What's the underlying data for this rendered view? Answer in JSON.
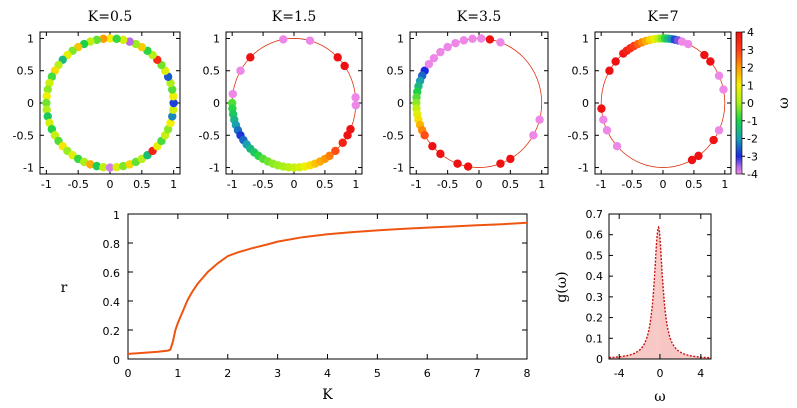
{
  "figure_title": "",
  "chart_data": [
    {
      "type": "scatter",
      "title": "K=0.5",
      "K": 0.5,
      "xlim": [
        -1.1,
        1.1
      ],
      "ylim": [
        -1.1,
        1.1
      ],
      "xticks": [
        "-1",
        "-0.5",
        "0",
        "0.5",
        "1"
      ],
      "yticks": [
        "-1",
        "-0.5",
        "0",
        "0.5",
        "1"
      ],
      "unit_circle": false,
      "points": [
        {
          "angle": 90,
          "omega": 1.0
        },
        {
          "angle": 96,
          "omega": 2.0
        },
        {
          "angle": 102,
          "omega": -0.5
        },
        {
          "angle": 108,
          "omega": 0.3
        },
        {
          "angle": 114,
          "omega": -1.0
        },
        {
          "angle": 120,
          "omega": 1.5
        },
        {
          "angle": 126,
          "omega": -0.3
        },
        {
          "angle": 132,
          "omega": 0.8
        },
        {
          "angle": 138,
          "omega": -1.5
        },
        {
          "angle": 144,
          "omega": 0.2
        },
        {
          "angle": 150,
          "omega": 1.2
        },
        {
          "angle": 156,
          "omega": -0.7
        },
        {
          "angle": 162,
          "omega": 0.5
        },
        {
          "angle": 168,
          "omega": -0.2
        },
        {
          "angle": 174,
          "omega": 0.9
        },
        {
          "angle": 180,
          "omega": -0.4
        },
        {
          "angle": 186,
          "omega": 0.1
        },
        {
          "angle": 192,
          "omega": -1.2
        },
        {
          "angle": 198,
          "omega": 0.6
        },
        {
          "angle": 204,
          "omega": -0.9
        },
        {
          "angle": 210,
          "omega": 0.4
        },
        {
          "angle": 216,
          "omega": -0.6
        },
        {
          "angle": 222,
          "omega": 1.1
        },
        {
          "angle": 228,
          "omega": -0.1
        },
        {
          "angle": 234,
          "omega": 0.7
        },
        {
          "angle": 240,
          "omega": -0.8
        },
        {
          "angle": 246,
          "omega": 0.0
        },
        {
          "angle": 252,
          "omega": 1.8
        },
        {
          "angle": 258,
          "omega": -1.1
        },
        {
          "angle": 264,
          "omega": 0.3
        },
        {
          "angle": 270,
          "omega": -3.8
        },
        {
          "angle": 276,
          "omega": 0.6
        },
        {
          "angle": 282,
          "omega": -0.3
        },
        {
          "angle": 288,
          "omega": 1.3
        },
        {
          "angle": 294,
          "omega": -0.5
        },
        {
          "angle": 300,
          "omega": 0.2
        },
        {
          "angle": 306,
          "omega": -1.4
        },
        {
          "angle": 312,
          "omega": 3.6
        },
        {
          "angle": 318,
          "omega": 0.8
        },
        {
          "angle": 324,
          "omega": -0.7
        },
        {
          "angle": 330,
          "omega": 0.4
        },
        {
          "angle": 336,
          "omega": -0.2
        },
        {
          "angle": 342,
          "omega": 1.0
        },
        {
          "angle": 348,
          "omega": -2.2
        },
        {
          "angle": 354,
          "omega": 0.5
        },
        {
          "angle": 0,
          "omega": -2.8
        },
        {
          "angle": 6,
          "omega": 0.9
        },
        {
          "angle": 12,
          "omega": -0.6
        },
        {
          "angle": 18,
          "omega": 0.1
        },
        {
          "angle": 24,
          "omega": -2.6
        },
        {
          "angle": 30,
          "omega": 0.7
        },
        {
          "angle": 36,
          "omega": -0.4
        },
        {
          "angle": 42,
          "omega": 3.4
        },
        {
          "angle": 48,
          "omega": 0.2
        },
        {
          "angle": 54,
          "omega": -0.9
        },
        {
          "angle": 60,
          "omega": 1.4
        },
        {
          "angle": 66,
          "omega": -0.1
        },
        {
          "angle": 72,
          "omega": -3.5
        },
        {
          "angle": 78,
          "omega": 0.6
        },
        {
          "angle": 84,
          "omega": -0.8
        }
      ]
    },
    {
      "type": "scatter",
      "title": "K=1.5",
      "K": 1.5,
      "xlim": [
        -1.1,
        1.1
      ],
      "ylim": [
        -1.1,
        1.1
      ],
      "xticks": [
        "-1",
        "-0.5",
        "0",
        "0.5",
        "1"
      ],
      "yticks": [
        "-1",
        "-0.5",
        "0",
        "0.5",
        "1"
      ],
      "unit_circle": true,
      "points": [
        {
          "angle": 180,
          "omega": -0.6
        },
        {
          "angle": 185,
          "omega": -0.9
        },
        {
          "angle": 190,
          "omega": -1.2
        },
        {
          "angle": 195,
          "omega": -1.6
        },
        {
          "angle": 200,
          "omega": -2.0
        },
        {
          "angle": 205,
          "omega": -2.4
        },
        {
          "angle": 210,
          "omega": -2.9
        },
        {
          "angle": 215,
          "omega": -2.5
        },
        {
          "angle": 220,
          "omega": -2.0
        },
        {
          "angle": 225,
          "omega": -1.6
        },
        {
          "angle": 230,
          "omega": -1.2
        },
        {
          "angle": 235,
          "omega": -0.9
        },
        {
          "angle": 240,
          "omega": -0.6
        },
        {
          "angle": 245,
          "omega": -0.4
        },
        {
          "angle": 250,
          "omega": -0.2
        },
        {
          "angle": 255,
          "omega": -0.1
        },
        {
          "angle": 260,
          "omega": 0.0
        },
        {
          "angle": 265,
          "omega": 0.2
        },
        {
          "angle": 270,
          "omega": 0.4
        },
        {
          "angle": 275,
          "omega": 0.6
        },
        {
          "angle": 280,
          "omega": 0.9
        },
        {
          "angle": 285,
          "omega": 1.2
        },
        {
          "angle": 290,
          "omega": 1.5
        },
        {
          "angle": 295,
          "omega": 1.8
        },
        {
          "angle": 300,
          "omega": 2.0
        },
        {
          "angle": 305,
          "omega": 2.3
        },
        {
          "angle": 312,
          "omega": 2.8
        },
        {
          "angle": 322,
          "omega": 3.6
        },
        {
          "angle": 330,
          "omega": 4.0
        },
        {
          "angle": 336,
          "omega": 4.0
        },
        {
          "angle": 358,
          "omega": -4.0
        },
        {
          "angle": 5,
          "omega": -4.0
        },
        {
          "angle": 35,
          "omega": 4.0
        },
        {
          "angle": 45,
          "omega": 4.0
        },
        {
          "angle": 75,
          "omega": -4.0
        },
        {
          "angle": 100,
          "omega": -4.0
        },
        {
          "angle": 135,
          "omega": 4.0
        },
        {
          "angle": 150,
          "omega": -4.0
        },
        {
          "angle": 172,
          "omega": -4.0
        }
      ]
    },
    {
      "type": "scatter",
      "title": "K=3.5",
      "K": 3.5,
      "xlim": [
        -1.1,
        1.1
      ],
      "ylim": [
        -1.1,
        1.1
      ],
      "xticks": [
        "-1",
        "-0.5",
        "0",
        "0.5",
        "1"
      ],
      "yticks": [
        "-1",
        "-0.5",
        "0",
        "0.5",
        "1"
      ],
      "unit_circle": true,
      "points": [
        {
          "angle": 150,
          "omega": -3.0
        },
        {
          "angle": 155,
          "omega": -2.5
        },
        {
          "angle": 160,
          "omega": -2.0
        },
        {
          "angle": 165,
          "omega": -1.5
        },
        {
          "angle": 170,
          "omega": -1.0
        },
        {
          "angle": 175,
          "omega": -0.6
        },
        {
          "angle": 180,
          "omega": -0.2
        },
        {
          "angle": 185,
          "omega": 0.3
        },
        {
          "angle": 190,
          "omega": 0.7
        },
        {
          "angle": 195,
          "omega": 1.2
        },
        {
          "angle": 200,
          "omega": 1.7
        },
        {
          "angle": 205,
          "omega": 2.2
        },
        {
          "angle": 210,
          "omega": 2.8
        },
        {
          "angle": 222,
          "omega": 4.0
        },
        {
          "angle": 232,
          "omega": 4.0
        },
        {
          "angle": 250,
          "omega": 4.0
        },
        {
          "angle": 260,
          "omega": 4.0
        },
        {
          "angle": 290,
          "omega": 4.0
        },
        {
          "angle": 300,
          "omega": 4.0
        },
        {
          "angle": 330,
          "omega": -4.0
        },
        {
          "angle": 345,
          "omega": -4.0
        },
        {
          "angle": 80,
          "omega": 4.0
        },
        {
          "angle": 88,
          "omega": -4.0
        },
        {
          "angle": 96,
          "omega": -4.0
        },
        {
          "angle": 104,
          "omega": -4.0
        },
        {
          "angle": 112,
          "omega": -4.0
        },
        {
          "angle": 120,
          "omega": -4.0
        },
        {
          "angle": 128,
          "omega": -4.0
        },
        {
          "angle": 136,
          "omega": -4.0
        },
        {
          "angle": 143,
          "omega": -4.0
        },
        {
          "angle": 70,
          "omega": -4.0
        }
      ]
    },
    {
      "type": "scatter",
      "title": "K=7",
      "K": 7,
      "xlim": [
        -1.1,
        1.1
      ],
      "ylim": [
        -1.1,
        1.1
      ],
      "xticks": [
        "-1",
        "-0.5",
        "0",
        "0.5",
        "1"
      ],
      "yticks": [
        "-1",
        "-0.5",
        "0",
        "0.5",
        "1"
      ],
      "unit_circle": true,
      "colorbar": {
        "label": "ω",
        "min": -4,
        "max": 4,
        "ticks": [
          "4",
          "3",
          "2",
          "1",
          "0",
          "-1",
          "-2",
          "-3",
          "-4"
        ]
      },
      "points": [
        {
          "angle": 130,
          "omega": 3.9
        },
        {
          "angle": 126,
          "omega": 3.6
        },
        {
          "angle": 122,
          "omega": 3.3
        },
        {
          "angle": 118,
          "omega": 3.0
        },
        {
          "angle": 114,
          "omega": 2.6
        },
        {
          "angle": 110,
          "omega": 2.2
        },
        {
          "angle": 106,
          "omega": 1.8
        },
        {
          "angle": 102,
          "omega": 1.3
        },
        {
          "angle": 98,
          "omega": 0.8
        },
        {
          "angle": 94,
          "omega": 0.3
        },
        {
          "angle": 91,
          "omega": -0.3
        },
        {
          "angle": 88,
          "omega": -0.9
        },
        {
          "angle": 85,
          "omega": -1.5
        },
        {
          "angle": 82,
          "omega": -2.1
        },
        {
          "angle": 79,
          "omega": -2.7
        },
        {
          "angle": 76,
          "omega": -3.3
        },
        {
          "angle": 72,
          "omega": -4.0
        },
        {
          "angle": 66,
          "omega": -4.0
        },
        {
          "angle": 48,
          "omega": 4.0
        },
        {
          "angle": 40,
          "omega": 4.0
        },
        {
          "angle": 25,
          "omega": -4.0
        },
        {
          "angle": 12,
          "omega": -4.0
        },
        {
          "angle": -25,
          "omega": -4.0
        },
        {
          "angle": -35,
          "omega": 4.0
        },
        {
          "angle": -55,
          "omega": 4.0
        },
        {
          "angle": -62,
          "omega": 4.0
        },
        {
          "angle": 185,
          "omega": 4.0
        },
        {
          "angle": 195,
          "omega": -4.0
        },
        {
          "angle": 205,
          "omega": -4.0
        },
        {
          "angle": 222,
          "omega": -4.0
        },
        {
          "angle": 140,
          "omega": 4.0
        },
        {
          "angle": 150,
          "omega": 4.0
        }
      ]
    },
    {
      "type": "line",
      "title": "",
      "xlabel": "K",
      "ylabel": "r",
      "xlim": [
        0,
        8
      ],
      "ylim": [
        0,
        1
      ],
      "xticks": [
        "0",
        "1",
        "2",
        "3",
        "4",
        "5",
        "6",
        "7",
        "8"
      ],
      "yticks": [
        "0",
        "0.2",
        "0.4",
        "0.6",
        "0.8",
        "1"
      ],
      "color": "#ee5511",
      "x": [
        0,
        0.2,
        0.4,
        0.6,
        0.8,
        0.85,
        0.9,
        0.95,
        1.0,
        1.1,
        1.2,
        1.3,
        1.4,
        1.6,
        1.8,
        2.0,
        2.2,
        2.5,
        2.8,
        3.0,
        3.5,
        4.0,
        4.5,
        5.0,
        5.5,
        6.0,
        6.5,
        7.0,
        7.5,
        8.0
      ],
      "y": [
        0.035,
        0.04,
        0.045,
        0.05,
        0.058,
        0.065,
        0.12,
        0.2,
        0.25,
        0.33,
        0.41,
        0.47,
        0.52,
        0.6,
        0.66,
        0.71,
        0.735,
        0.765,
        0.79,
        0.81,
        0.84,
        0.86,
        0.875,
        0.887,
        0.897,
        0.906,
        0.914,
        0.922,
        0.93,
        0.94
      ]
    },
    {
      "type": "bar",
      "title": "",
      "xlabel": "ω",
      "ylabel": "g(ω)",
      "xlim": [
        -5,
        5
      ],
      "ylim": [
        0,
        0.7
      ],
      "xticks": [
        "-4",
        "0",
        "4"
      ],
      "yticks": [
        "0",
        "0.1",
        "0.2",
        "0.3",
        "0.4",
        "0.5",
        "0.6",
        "0.7"
      ],
      "bar_color": "#f2a5a0",
      "curve_color": "#cc1111",
      "distribution": "Lorentzian",
      "center": -0.15,
      "gamma": 0.5,
      "peak": 0.636
    }
  ]
}
